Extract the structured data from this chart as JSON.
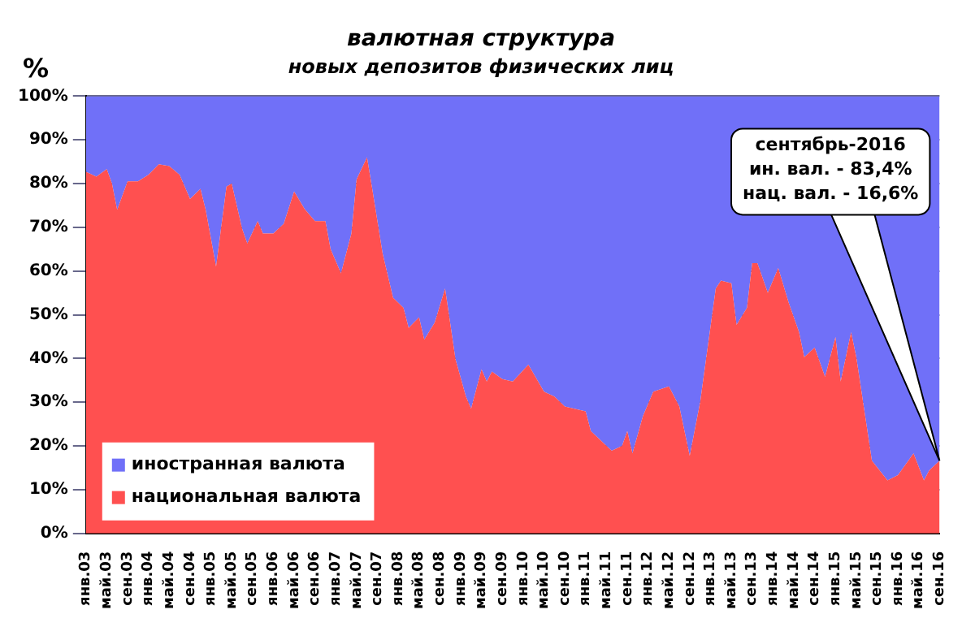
{
  "chart_data": {
    "type": "area",
    "stacked": true,
    "title": "валютная структура",
    "subtitle": "новых депозитов физических лиц",
    "ylabel": "%",
    "x": [
      "2003-01",
      "2003-03",
      "2003-05",
      "2003-06",
      "2003-07",
      "2003-09",
      "2003-11",
      "2004-01",
      "2004-03",
      "2004-05",
      "2004-07",
      "2004-09",
      "2004-11",
      "2004-12",
      "2005-02",
      "2005-04",
      "2005-05",
      "2005-07",
      "2005-08",
      "2005-10",
      "2005-11",
      "2006-01",
      "2006-03",
      "2006-05",
      "2006-07",
      "2006-09",
      "2006-11",
      "2006-12",
      "2007-02",
      "2007-04",
      "2007-05",
      "2007-07",
      "2007-08",
      "2007-10",
      "2007-12",
      "2008-02",
      "2008-03",
      "2008-05",
      "2008-06",
      "2008-08",
      "2008-10",
      "2008-12",
      "2009-02",
      "2009-03",
      "2009-05",
      "2009-06",
      "2009-07",
      "2009-09",
      "2009-11",
      "2010-02",
      "2010-05",
      "2010-07",
      "2010-09",
      "2011-01",
      "2011-02",
      "2011-06",
      "2011-08",
      "2011-09",
      "2011-10",
      "2011-12",
      "2012-02",
      "2012-05",
      "2012-07",
      "2012-09",
      "2012-11",
      "2013-02",
      "2013-03",
      "2013-05",
      "2013-06",
      "2013-08",
      "2013-09",
      "2013-10",
      "2013-12",
      "2014-02",
      "2014-04",
      "2014-06",
      "2014-07",
      "2014-09",
      "2014-11",
      "2015-01",
      "2015-02",
      "2015-04",
      "2015-05",
      "2015-08",
      "2015-11",
      "2016-01",
      "2016-04",
      "2016-06",
      "2016-07",
      "2016-09"
    ],
    "series": [
      {
        "name": "национальная валюта",
        "color": "#ff5050",
        "values": [
          82.7,
          81.6,
          83.3,
          80,
          74,
          80.5,
          80.5,
          82,
          84.4,
          84,
          82,
          76.5,
          78.8,
          74,
          61,
          79.3,
          80,
          69.7,
          66.3,
          71.4,
          68.6,
          68.6,
          70.8,
          78.2,
          74.2,
          71.4,
          71.4,
          65,
          59.5,
          68.6,
          81,
          86,
          78.8,
          64,
          53.9,
          51.6,
          47,
          49.4,
          44.3,
          48.2,
          56,
          39.8,
          31.3,
          28.5,
          37.5,
          34.7,
          37,
          35.3,
          34.7,
          38.6,
          32.4,
          31.3,
          29,
          27.9,
          23.4,
          18.9,
          20,
          23.4,
          18.3,
          26.8,
          32.4,
          33.6,
          29,
          17.7,
          30,
          56,
          57.8,
          57.2,
          47.7,
          51.6,
          61.8,
          61.8,
          55,
          60.7,
          52.8,
          46,
          40.3,
          42.5,
          35.8,
          44.9,
          34.7,
          46,
          40.3,
          16.6,
          12.1,
          13.3,
          18.3,
          12.1,
          14.4,
          16.6
        ]
      },
      {
        "name": "иностранная валюта",
        "color": "#7070f8",
        "values": [
          17.3,
          18.4,
          16.7,
          20,
          26,
          19.5,
          19.5,
          18,
          15.6,
          16,
          18,
          23.5,
          21.2,
          26,
          39,
          20.7,
          20,
          30.3,
          33.7,
          28.6,
          31.4,
          31.4,
          29.2,
          21.8,
          25.8,
          28.6,
          28.6,
          35,
          40.5,
          31.4,
          19,
          14,
          21.2,
          36,
          46.1,
          48.4,
          53,
          50.6,
          55.7,
          51.8,
          44,
          60.2,
          68.7,
          71.5,
          62.5,
          65.3,
          63,
          64.7,
          65.3,
          61.4,
          67.6,
          68.7,
          71,
          72.1,
          76.6,
          81.1,
          80,
          76.6,
          81.7,
          73.2,
          67.6,
          66.4,
          71,
          82.3,
          70,
          44,
          42.2,
          42.8,
          52.3,
          48.4,
          38.2,
          38.2,
          45,
          39.3,
          47.2,
          54,
          59.7,
          57.5,
          64.2,
          55.1,
          65.3,
          54,
          59.7,
          83.4,
          87.9,
          86.7,
          81.7,
          87.9,
          85.6,
          83.4
        ]
      }
    ],
    "xlim": [
      "2003-01",
      "2016-09"
    ],
    "xticks": [
      {
        "value": "2003-01",
        "label": "янв.03"
      },
      {
        "value": "2003-05",
        "label": "май.03"
      },
      {
        "value": "2003-09",
        "label": "сен.03"
      },
      {
        "value": "2004-01",
        "label": "янв.04"
      },
      {
        "value": "2004-05",
        "label": "май.04"
      },
      {
        "value": "2004-09",
        "label": "сен.04"
      },
      {
        "value": "2005-01",
        "label": "янв.05"
      },
      {
        "value": "2005-05",
        "label": "май.05"
      },
      {
        "value": "2005-09",
        "label": "сен.05"
      },
      {
        "value": "2006-01",
        "label": "янв.06"
      },
      {
        "value": "2006-05",
        "label": "май.06"
      },
      {
        "value": "2006-09",
        "label": "сен.06"
      },
      {
        "value": "2007-01",
        "label": "янв.07"
      },
      {
        "value": "2007-05",
        "label": "май.07"
      },
      {
        "value": "2007-09",
        "label": "сен.07"
      },
      {
        "value": "2008-01",
        "label": "янв.08"
      },
      {
        "value": "2008-05",
        "label": "май.08"
      },
      {
        "value": "2008-09",
        "label": "сен.08"
      },
      {
        "value": "2009-01",
        "label": "янв.09"
      },
      {
        "value": "2009-05",
        "label": "май.09"
      },
      {
        "value": "2009-09",
        "label": "сен.09"
      },
      {
        "value": "2010-01",
        "label": "янв.10"
      },
      {
        "value": "2010-05",
        "label": "май.10"
      },
      {
        "value": "2010-09",
        "label": "сен.10"
      },
      {
        "value": "2011-01",
        "label": "янв.11"
      },
      {
        "value": "2011-05",
        "label": "май.11"
      },
      {
        "value": "2011-09",
        "label": "сен.11"
      },
      {
        "value": "2012-01",
        "label": "янв.12"
      },
      {
        "value": "2012-05",
        "label": "май.12"
      },
      {
        "value": "2012-09",
        "label": "сен.12"
      },
      {
        "value": "2013-01",
        "label": "янв.13"
      },
      {
        "value": "2013-05",
        "label": "май.13"
      },
      {
        "value": "2013-09",
        "label": "сен.13"
      },
      {
        "value": "2014-01",
        "label": "янв.14"
      },
      {
        "value": "2014-05",
        "label": "май.14"
      },
      {
        "value": "2014-09",
        "label": "сен.14"
      },
      {
        "value": "2015-01",
        "label": "янв.15"
      },
      {
        "value": "2015-05",
        "label": "май.15"
      },
      {
        "value": "2015-09",
        "label": "сен.15"
      },
      {
        "value": "2016-01",
        "label": "янв.16"
      },
      {
        "value": "2016-05",
        "label": "май.16"
      },
      {
        "value": "2016-09",
        "label": "сен.16"
      }
    ],
    "ylim": [
      0,
      100
    ],
    "yticks": [
      {
        "value": 0,
        "label": "0%"
      },
      {
        "value": 10,
        "label": "10%"
      },
      {
        "value": 20,
        "label": "20%"
      },
      {
        "value": 30,
        "label": "30%"
      },
      {
        "value": 40,
        "label": "40%"
      },
      {
        "value": 50,
        "label": "50%"
      },
      {
        "value": 60,
        "label": "60%"
      },
      {
        "value": 70,
        "label": "70%"
      },
      {
        "value": 80,
        "label": "80%"
      },
      {
        "value": 90,
        "label": "90%"
      },
      {
        "value": 100,
        "label": "100%"
      }
    ],
    "grid": "y",
    "legend": "bottom left",
    "annotations": [
      {
        "text": "сентябрь-2016\nин. вал. - 83,4%\nнац. вал. - 16,6%",
        "x": "2016-09",
        "y": 16.6
      }
    ]
  }
}
